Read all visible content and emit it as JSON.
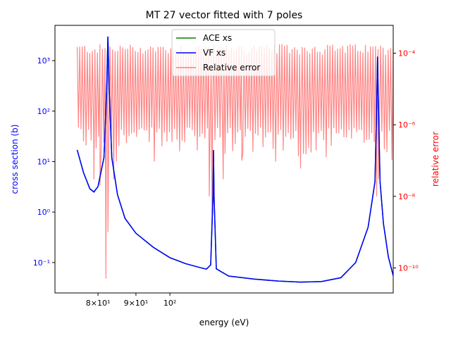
{
  "chart_data": {
    "type": "line",
    "title": "MT 27 vector fitted with 7 poles",
    "xlabel": "energy (eV)",
    "ylabel": "cross section (b)",
    "y2label": "relative error",
    "xscale": "log",
    "yscale": "log",
    "y2scale": "log",
    "xlim": [
      70,
      200
    ],
    "ylim": [
      0.025,
      5000
    ],
    "y2lim": [
      2e-11,
      0.0006
    ],
    "x_ticks": [
      {
        "value": 80,
        "label": "8×10¹"
      },
      {
        "value": 90,
        "label": "9×10¹"
      },
      {
        "value": 100,
        "label": "10²"
      }
    ],
    "y_ticks": [
      {
        "value": 0.1,
        "label": "10⁻¹"
      },
      {
        "value": 1,
        "label": "10⁰"
      },
      {
        "value": 10,
        "label": "10¹"
      },
      {
        "value": 100,
        "label": "10²"
      },
      {
        "value": 1000,
        "label": "10³"
      }
    ],
    "y2_ticks": [
      {
        "value": 1e-10,
        "label": "10⁻¹⁰"
      },
      {
        "value": 1e-08,
        "label": "10⁻⁸"
      },
      {
        "value": 1e-06,
        "label": "10⁻⁶"
      },
      {
        "value": 0.0001,
        "label": "10⁻⁴"
      }
    ],
    "legend_position": "top-center",
    "series": [
      {
        "name": "ACE xs",
        "color": "#008000",
        "axis": "left",
        "points": [
          [
            75,
            17
          ],
          [
            76.5,
            6
          ],
          [
            78,
            2.9
          ],
          [
            79,
            2.5
          ],
          [
            80,
            3.2
          ],
          [
            81.5,
            12
          ],
          [
            82.2,
            300
          ],
          [
            82.5,
            3000
          ],
          [
            82.8,
            300
          ],
          [
            83.5,
            12
          ],
          [
            85,
            2.2
          ],
          [
            87,
            0.75
          ],
          [
            90,
            0.38
          ],
          [
            95,
            0.2
          ],
          [
            100,
            0.125
          ],
          [
            105,
            0.095
          ],
          [
            110,
            0.079
          ],
          [
            112,
            0.074
          ],
          [
            113.5,
            0.09
          ],
          [
            114.3,
            2
          ],
          [
            114.5,
            17
          ],
          [
            114.7,
            2
          ],
          [
            115.5,
            0.075
          ],
          [
            120,
            0.054
          ],
          [
            130,
            0.047
          ],
          [
            140,
            0.043
          ],
          [
            150,
            0.041
          ],
          [
            160,
            0.042
          ],
          [
            170,
            0.05
          ],
          [
            178,
            0.1
          ],
          [
            185,
            0.5
          ],
          [
            189,
            4
          ],
          [
            190.2,
            300
          ],
          [
            190.5,
            1200
          ],
          [
            190.8,
            300
          ],
          [
            192,
            4
          ],
          [
            194,
            0.6
          ],
          [
            197,
            0.13
          ],
          [
            200,
            0.055
          ]
        ]
      },
      {
        "name": "VF xs",
        "color": "#0000ff",
        "axis": "left",
        "points": [
          [
            75,
            17
          ],
          [
            76.5,
            6
          ],
          [
            78,
            2.9
          ],
          [
            79,
            2.5
          ],
          [
            80,
            3.2
          ],
          [
            81.5,
            12
          ],
          [
            82.2,
            300
          ],
          [
            82.5,
            3000
          ],
          [
            82.8,
            300
          ],
          [
            83.5,
            12
          ],
          [
            85,
            2.2
          ],
          [
            87,
            0.75
          ],
          [
            90,
            0.38
          ],
          [
            95,
            0.2
          ],
          [
            100,
            0.125
          ],
          [
            105,
            0.095
          ],
          [
            110,
            0.079
          ],
          [
            112,
            0.074
          ],
          [
            113.5,
            0.09
          ],
          [
            114.3,
            2
          ],
          [
            114.5,
            17
          ],
          [
            114.7,
            2
          ],
          [
            115.5,
            0.075
          ],
          [
            120,
            0.054
          ],
          [
            130,
            0.047
          ],
          [
            140,
            0.043
          ],
          [
            150,
            0.041
          ],
          [
            160,
            0.042
          ],
          [
            170,
            0.05
          ],
          [
            178,
            0.1
          ],
          [
            185,
            0.5
          ],
          [
            189,
            4
          ],
          [
            190.2,
            300
          ],
          [
            190.5,
            1200
          ],
          [
            190.8,
            300
          ],
          [
            192,
            4
          ],
          [
            194,
            0.6
          ],
          [
            197,
            0.13
          ],
          [
            200,
            0.055
          ]
        ]
      },
      {
        "name": "Relative error",
        "color": "#ff7f7f",
        "axis": "right",
        "x_range": [
          75,
          200
        ],
        "spike_count": 250,
        "upper_envelope": 0.00018,
        "lower_envelope": 3e-07,
        "deep_dips": [
          [
            82,
            5e-11
          ],
          [
            82.5,
            1e-09
          ],
          [
            79,
            3e-08
          ],
          [
            80.5,
            2e-08
          ],
          [
            84,
            3e-08
          ],
          [
            114,
            2e-09
          ],
          [
            113,
            1e-08
          ],
          [
            118,
            3e-08
          ],
          [
            190,
            1e-08
          ],
          [
            191,
            3e-08
          ],
          [
            150,
            6e-08
          ],
          [
            125,
            1e-07
          ]
        ]
      }
    ]
  }
}
